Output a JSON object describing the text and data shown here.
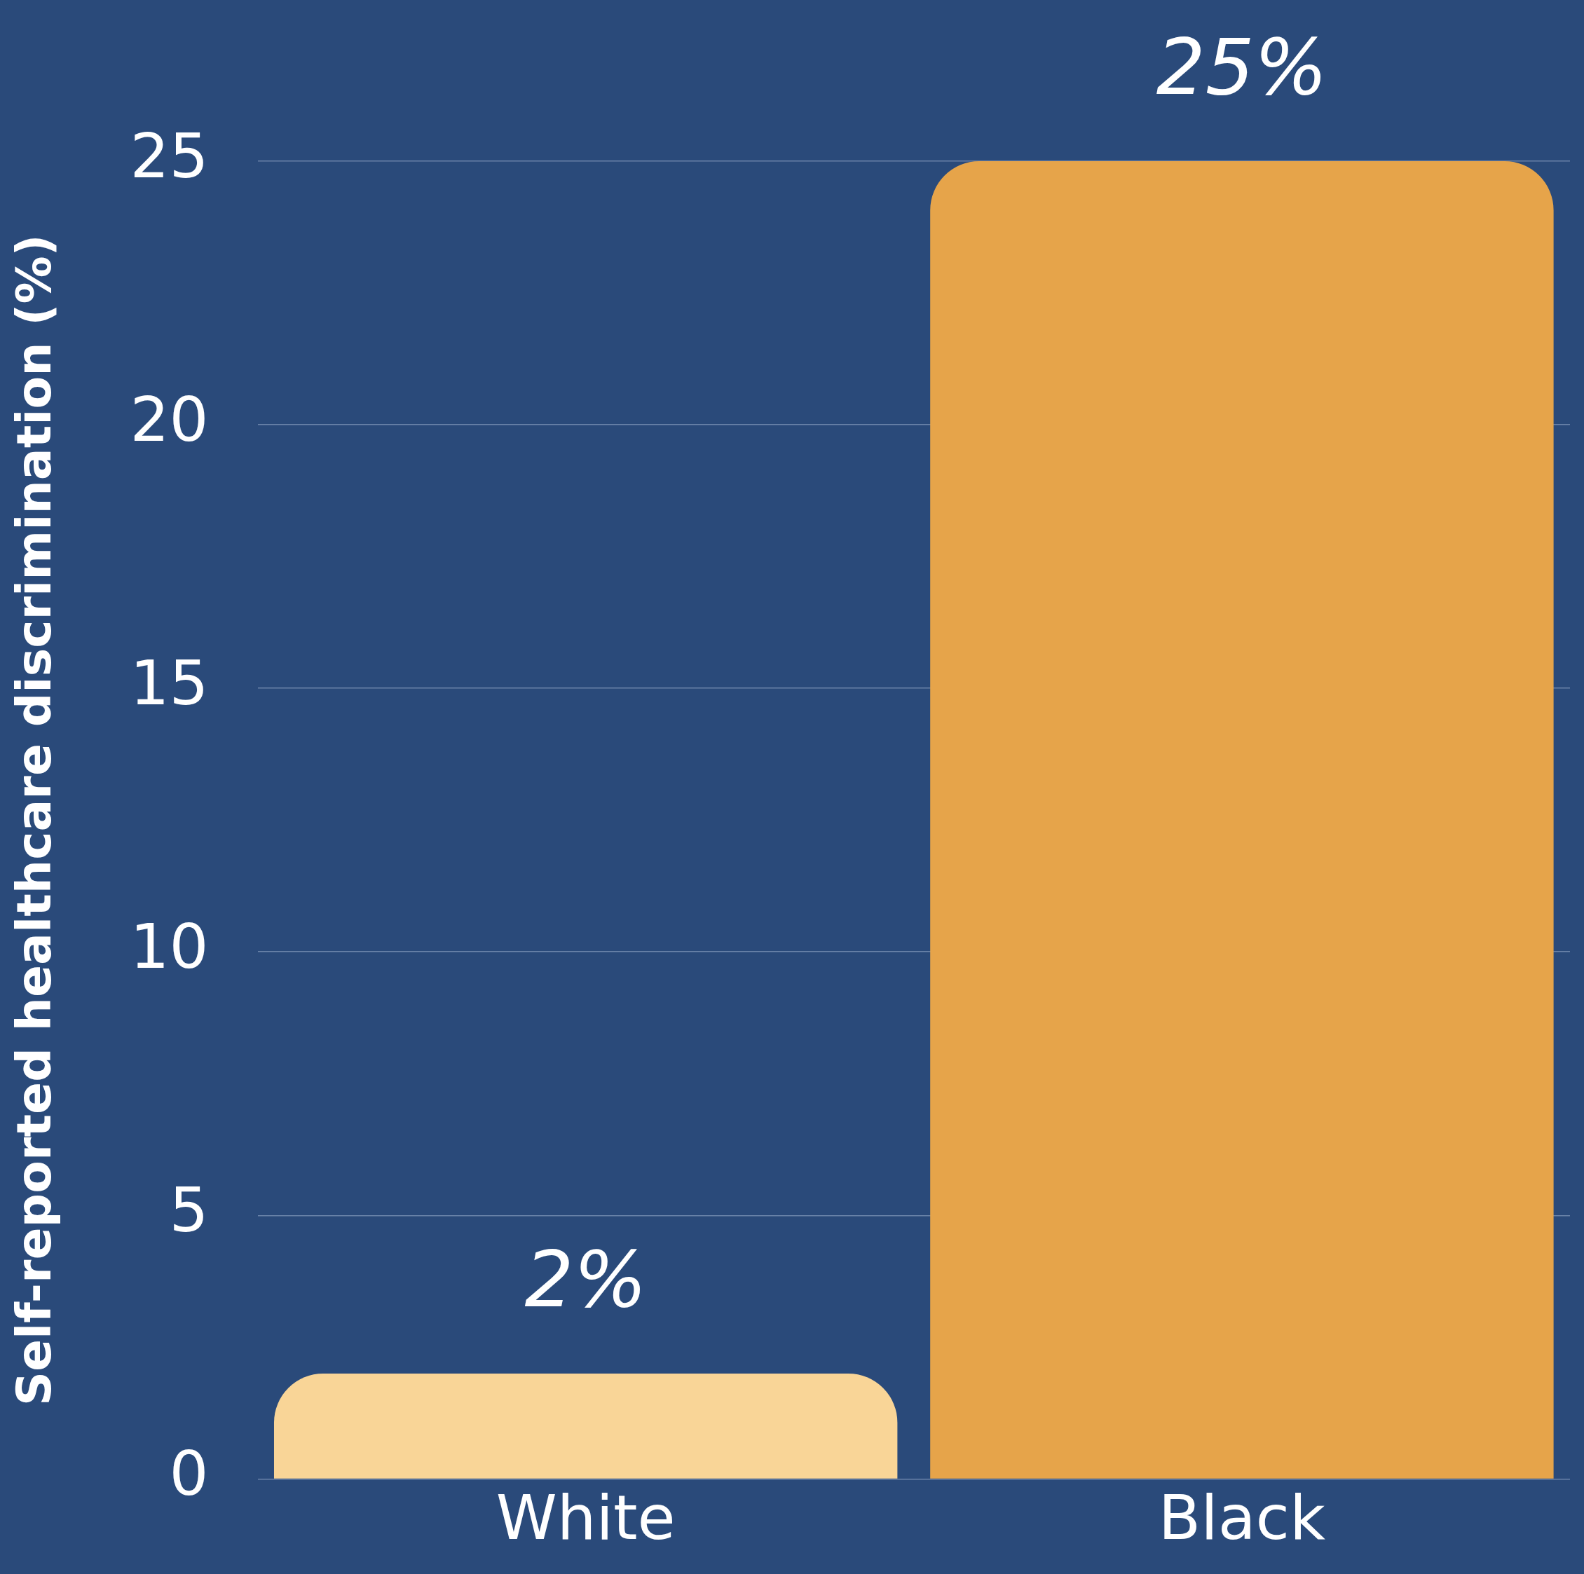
{
  "chart_data": {
    "type": "bar",
    "ylabel": "Self-reported healthcare discrimination (%)",
    "categories": [
      "White",
      "Black"
    ],
    "values": [
      2,
      25
    ],
    "colors": [
      "#f9d597",
      "#e6a44a"
    ],
    "value_labels": [
      "2%",
      "25%"
    ],
    "ylim": [
      0,
      25
    ],
    "yticks": [
      0,
      5,
      10,
      15,
      20,
      25
    ],
    "grid": "y",
    "legend": false
  }
}
